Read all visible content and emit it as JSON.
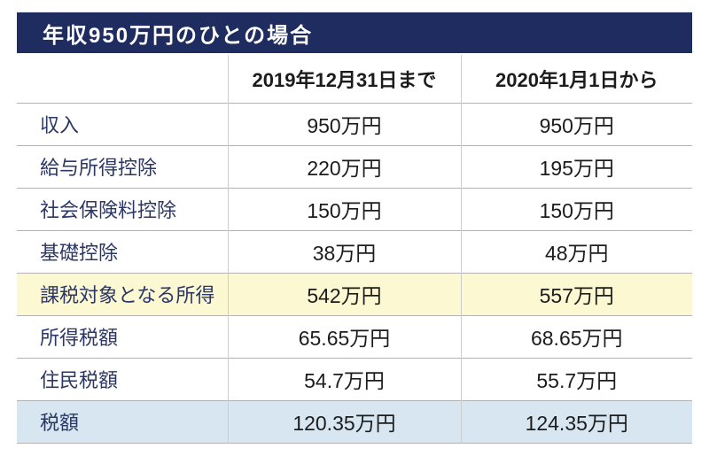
{
  "title": {
    "text": "年収950万円のひとの場合"
  },
  "table": {
    "columns": {
      "label": "",
      "before": "2019年12月31日まで",
      "after": "2020年1月1日から"
    },
    "rows": [
      {
        "label": "収入",
        "before": "950万円",
        "after": "950万円",
        "highlight": "none"
      },
      {
        "label": "給与所得控除",
        "before": "220万円",
        "after": "195万円",
        "highlight": "none"
      },
      {
        "label": "社会保険料控除",
        "before": "150万円",
        "after": "150万円",
        "highlight": "none"
      },
      {
        "label": "基礎控除",
        "before": "38万円",
        "after": "48万円",
        "highlight": "none"
      },
      {
        "label": "課税対象となる所得",
        "before": "542万円",
        "after": "557万円",
        "highlight": "yellow"
      },
      {
        "label": "所得税額",
        "before": "65.65万円",
        "after": "68.65万円",
        "highlight": "none"
      },
      {
        "label": "住民税額",
        "before": "54.7万円",
        "after": "55.7万円",
        "highlight": "none"
      },
      {
        "label": "税額",
        "before": "120.35万円",
        "after": "124.35万円",
        "highlight": "blue"
      }
    ]
  },
  "colors": {
    "title_bg": "#1f2c60",
    "title_text": "#ffffff",
    "label_text": "#2b3767",
    "value_text": "#1c1c1c",
    "highlight_yellow": "#fcf8d2",
    "highlight_blue": "#d7e6f0",
    "row_border": "#b3b3b3",
    "col_border": "#cccccc",
    "page_bg": "#ffffff"
  }
}
